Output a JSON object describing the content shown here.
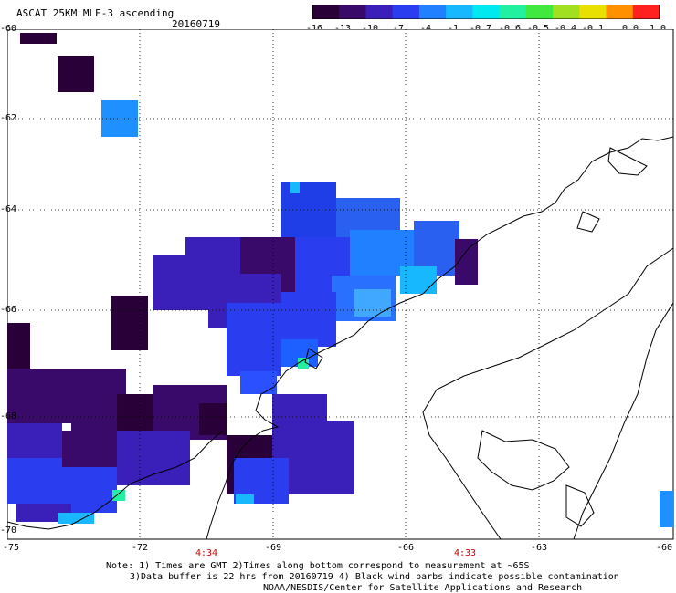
{
  "header": {
    "title": "ASCAT 25KM MLE-3 ascending",
    "date": "20160719"
  },
  "colorbar": {
    "ticks": [
      "-16",
      "-13",
      "-10",
      "-7",
      "-4",
      "-1",
      "-0.7",
      "-0.6",
      "-0.5",
      "-0.4",
      "-0.1",
      "0.0",
      "1.0"
    ],
    "colors": [
      "#2a0038",
      "#3a0a6a",
      "#3a1fb8",
      "#2a3ef0",
      "#2080ff",
      "#18b8ff",
      "#00e8f0",
      "#20f0a0",
      "#40e840",
      "#a0e020",
      "#e8e000",
      "#ff9000",
      "#ff2020"
    ]
  },
  "axes": {
    "lat_labels": [
      "-60",
      "-62",
      "-64",
      "-66",
      "-68",
      "-70"
    ],
    "lon_labels": [
      "-75",
      "-72",
      "-69",
      "-66",
      "-63",
      "-60"
    ],
    "time_labels": [
      "4:34",
      "4:33"
    ]
  },
  "notes": {
    "line1": "Note: 1) Times are GMT 2)Times along bottom correspond to measurement at ~65S",
    "line2": "3)Data buffer is 22 hrs from 20160719 4) Black wind barbs indicate possible contamination",
    "line3": "NOAA/NESDIS/Center for Satellite Applications and Research"
  }
}
